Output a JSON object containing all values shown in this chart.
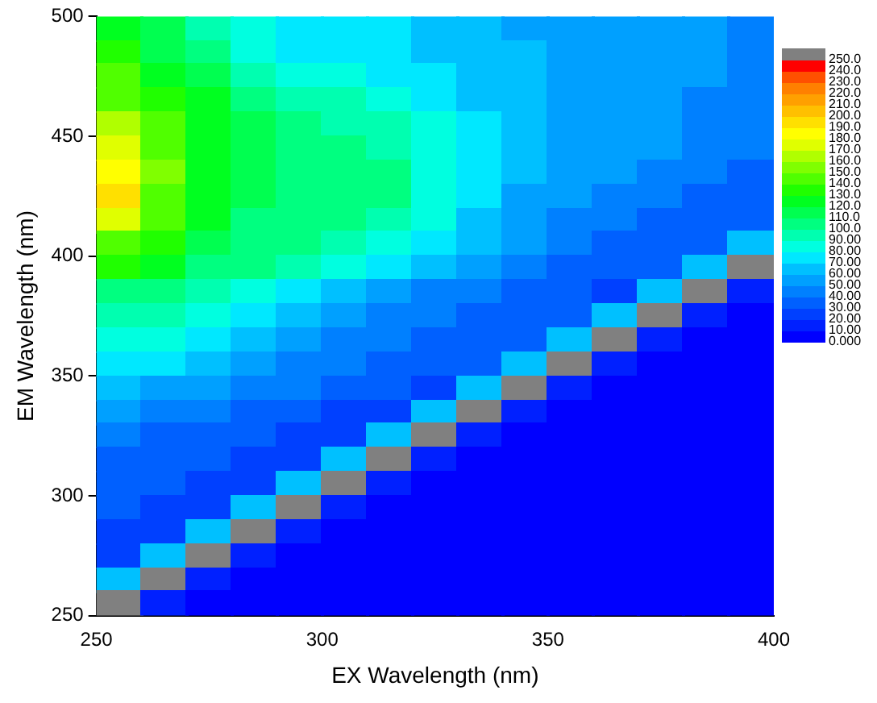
{
  "chart_data": {
    "type": "heatmap",
    "xlabel": "EX Wavelength (nm)",
    "ylabel": "EM Wavelength (nm)",
    "x": [
      255,
      265,
      275,
      285,
      295,
      305,
      315,
      325,
      335,
      345,
      355,
      365,
      375,
      385,
      395
    ],
    "y": [
      495,
      485,
      475,
      465,
      455,
      445,
      435,
      425,
      415,
      405,
      395,
      385,
      375,
      365,
      355,
      345,
      335,
      325,
      315,
      305,
      295,
      285,
      275,
      265,
      255
    ],
    "xlim": [
      250,
      400
    ],
    "ylim": [
      250,
      500
    ],
    "xticks": [
      250,
      300,
      350,
      400
    ],
    "yticks": [
      250,
      300,
      350,
      400,
      450,
      500
    ],
    "clim": [
      0,
      260
    ],
    "cticks": [
      {
        "value": 0,
        "label": "0.000"
      },
      {
        "value": 10,
        "label": "10.00"
      },
      {
        "value": 20,
        "label": "20.00"
      },
      {
        "value": 30,
        "label": "30.00"
      },
      {
        "value": 40,
        "label": "40.00"
      },
      {
        "value": 50,
        "label": "50.00"
      },
      {
        "value": 60,
        "label": "60.00"
      },
      {
        "value": 70,
        "label": "70.00"
      },
      {
        "value": 80,
        "label": "80.00"
      },
      {
        "value": 90,
        "label": "90.00"
      },
      {
        "value": 100,
        "label": "100.0"
      },
      {
        "value": 110,
        "label": "110.0"
      },
      {
        "value": 120,
        "label": "120.0"
      },
      {
        "value": 130,
        "label": "130.0"
      },
      {
        "value": 140,
        "label": "140.0"
      },
      {
        "value": 150,
        "label": "150.0"
      },
      {
        "value": 160,
        "label": "160.0"
      },
      {
        "value": 170,
        "label": "170.0"
      },
      {
        "value": 180,
        "label": "180.0"
      },
      {
        "value": 190,
        "label": "190.0"
      },
      {
        "value": 200,
        "label": "200.0"
      },
      {
        "value": 210,
        "label": "210.0"
      },
      {
        "value": 220,
        "label": "220.0"
      },
      {
        "value": 230,
        "label": "230.0"
      },
      {
        "value": 240,
        "label": "240.0"
      },
      {
        "value": 250,
        "label": "250.0"
      }
    ],
    "colors": [
      "#0000ff",
      "#0020ff",
      "#0040ff",
      "#0060ff",
      "#0080ff",
      "#00a0ff",
      "#00c0ff",
      "#00e8ff",
      "#00ffe0",
      "#00ffb0",
      "#00ff80",
      "#00ff50",
      "#00ff20",
      "#20ff00",
      "#50ff00",
      "#80ff00",
      "#b0ff00",
      "#e0ff00",
      "#ffff00",
      "#ffe000",
      "#ffc000",
      "#ffa000",
      "#ff8000",
      "#ff5000",
      "#ff0000",
      "#808080"
    ],
    "cells": [
      [
        120,
        110,
        95,
        80,
        75,
        72,
        70,
        65,
        60,
        58,
        55,
        55,
        50,
        50,
        45
      ],
      [
        130,
        115,
        100,
        85,
        78,
        75,
        72,
        68,
        62,
        60,
        57,
        55,
        52,
        50,
        45
      ],
      [
        140,
        125,
        110,
        95,
        85,
        80,
        75,
        70,
        65,
        60,
        58,
        55,
        52,
        50,
        45
      ],
      [
        150,
        135,
        120,
        105,
        95,
        90,
        85,
        75,
        68,
        62,
        58,
        55,
        52,
        48,
        45
      ],
      [
        165,
        145,
        125,
        110,
        100,
        95,
        90,
        80,
        70,
        62,
        58,
        55,
        50,
        48,
        42
      ],
      [
        175,
        150,
        125,
        110,
        105,
        100,
        95,
        85,
        72,
        62,
        58,
        52,
        50,
        45,
        40
      ],
      [
        185,
        155,
        125,
        110,
        105,
        102,
        100,
        88,
        72,
        60,
        55,
        50,
        45,
        42,
        38
      ],
      [
        190,
        150,
        125,
        110,
        105,
        105,
        100,
        85,
        70,
        58,
        50,
        45,
        42,
        38,
        35
      ],
      [
        170,
        140,
        120,
        108,
        105,
        102,
        95,
        80,
        65,
        55,
        48,
        42,
        38,
        35,
        32
      ],
      [
        150,
        130,
        115,
        105,
        100,
        95,
        85,
        72,
        60,
        50,
        42,
        38,
        35,
        32,
        60
      ],
      [
        135,
        120,
        108,
        100,
        92,
        85,
        75,
        62,
        52,
        45,
        38,
        34,
        30,
        60,
        260
      ],
      [
        105,
        100,
        92,
        85,
        75,
        65,
        55,
        48,
        42,
        36,
        32,
        28,
        60,
        260,
        15
      ],
      [
        95,
        90,
        82,
        75,
        65,
        55,
        48,
        42,
        38,
        34,
        30,
        60,
        260,
        15,
        5
      ],
      [
        85,
        80,
        72,
        65,
        55,
        48,
        42,
        38,
        34,
        30,
        60,
        260,
        15,
        5,
        5
      ],
      [
        75,
        70,
        62,
        55,
        48,
        42,
        38,
        34,
        30,
        60,
        260,
        15,
        5,
        5,
        5
      ],
      [
        60,
        55,
        50,
        45,
        40,
        36,
        32,
        28,
        60,
        260,
        15,
        5,
        5,
        5,
        5
      ],
      [
        50,
        45,
        40,
        36,
        32,
        28,
        25,
        60,
        260,
        15,
        5,
        5,
        5,
        5,
        5
      ],
      [
        42,
        38,
        35,
        30,
        28,
        25,
        60,
        260,
        15,
        5,
        5,
        5,
        5,
        5,
        5
      ],
      [
        38,
        35,
        30,
        28,
        25,
        60,
        260,
        15,
        5,
        5,
        5,
        5,
        5,
        5,
        5
      ],
      [
        35,
        32,
        28,
        25,
        60,
        260,
        15,
        5,
        5,
        5,
        5,
        5,
        5,
        5,
        5
      ],
      [
        30,
        28,
        25,
        60,
        260,
        15,
        5,
        5,
        5,
        5,
        5,
        5,
        5,
        5,
        5
      ],
      [
        28,
        25,
        60,
        260,
        15,
        5,
        5,
        5,
        5,
        5,
        5,
        5,
        5,
        5,
        5
      ],
      [
        25,
        60,
        260,
        15,
        5,
        5,
        5,
        5,
        5,
        5,
        5,
        5,
        5,
        5,
        5
      ],
      [
        60,
        260,
        15,
        5,
        5,
        5,
        5,
        5,
        5,
        5,
        5,
        5,
        5,
        5,
        5
      ],
      [
        260,
        15,
        5,
        5,
        5,
        5,
        5,
        5,
        5,
        5,
        5,
        5,
        5,
        5,
        5
      ]
    ]
  }
}
